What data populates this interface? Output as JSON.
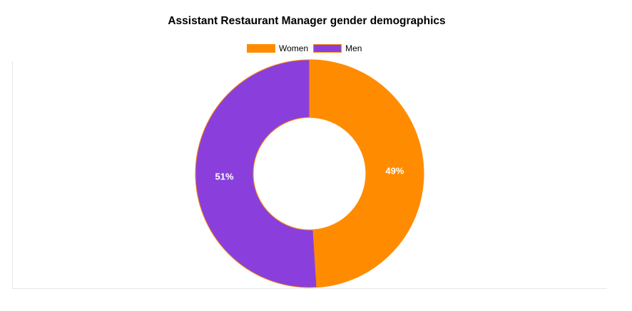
{
  "chart_data": {
    "type": "pie",
    "variant": "donut",
    "title": "Assistant Restaurant Manager gender demographics",
    "legend_position": "top",
    "slices": [
      {
        "label": "Women",
        "value": 49,
        "display": "49%",
        "color": "#FF8C00"
      },
      {
        "label": "Men",
        "value": 51,
        "display": "51%",
        "color": "#8A3FDC"
      }
    ],
    "border_color": "#FF8C00"
  }
}
